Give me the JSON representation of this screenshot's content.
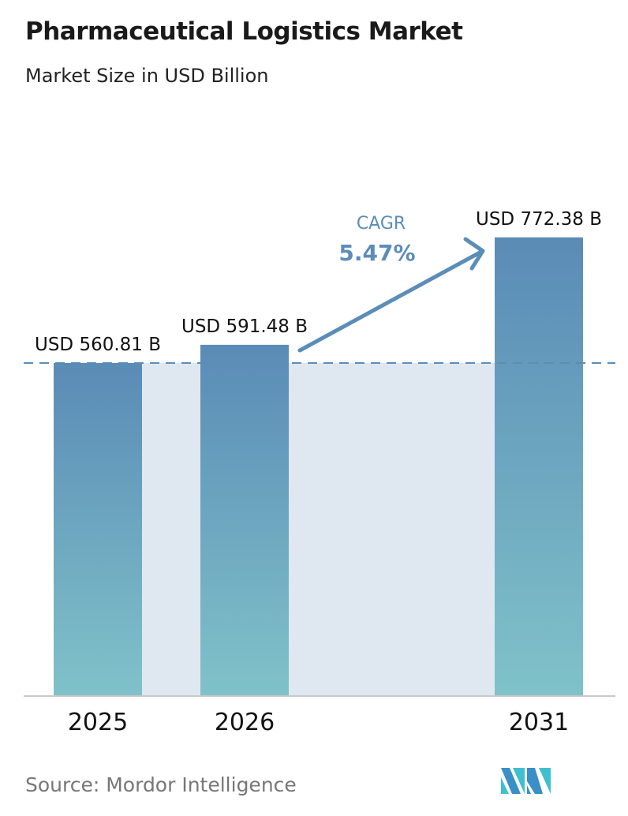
{
  "title": "Pharmaceutical Logistics Market",
  "subtitle": "Market Size in USD Billion",
  "source": "Source:  Mordor Intelligence",
  "colors": {
    "bar_top": "#5a8bb6",
    "bar_bottom": "#80c2c9",
    "fill": "#dfe8f0",
    "accent": "#5b8db8"
  },
  "chart_data": {
    "type": "bar",
    "title": "Pharmaceutical Logistics Market",
    "subtitle": "Market Size in USD Billion",
    "categories": [
      "2025",
      "2026",
      "2031"
    ],
    "values": [
      560.81,
      591.48,
      772.38
    ],
    "data_labels": [
      "USD 560.81 B",
      "USD 591.48 B",
      "USD 772.38 B"
    ],
    "ylim": [
      0,
      800
    ],
    "grid": false,
    "annotation": {
      "label": "CAGR",
      "value": "5.47%"
    }
  },
  "logo": "Mordor Intelligence logo"
}
